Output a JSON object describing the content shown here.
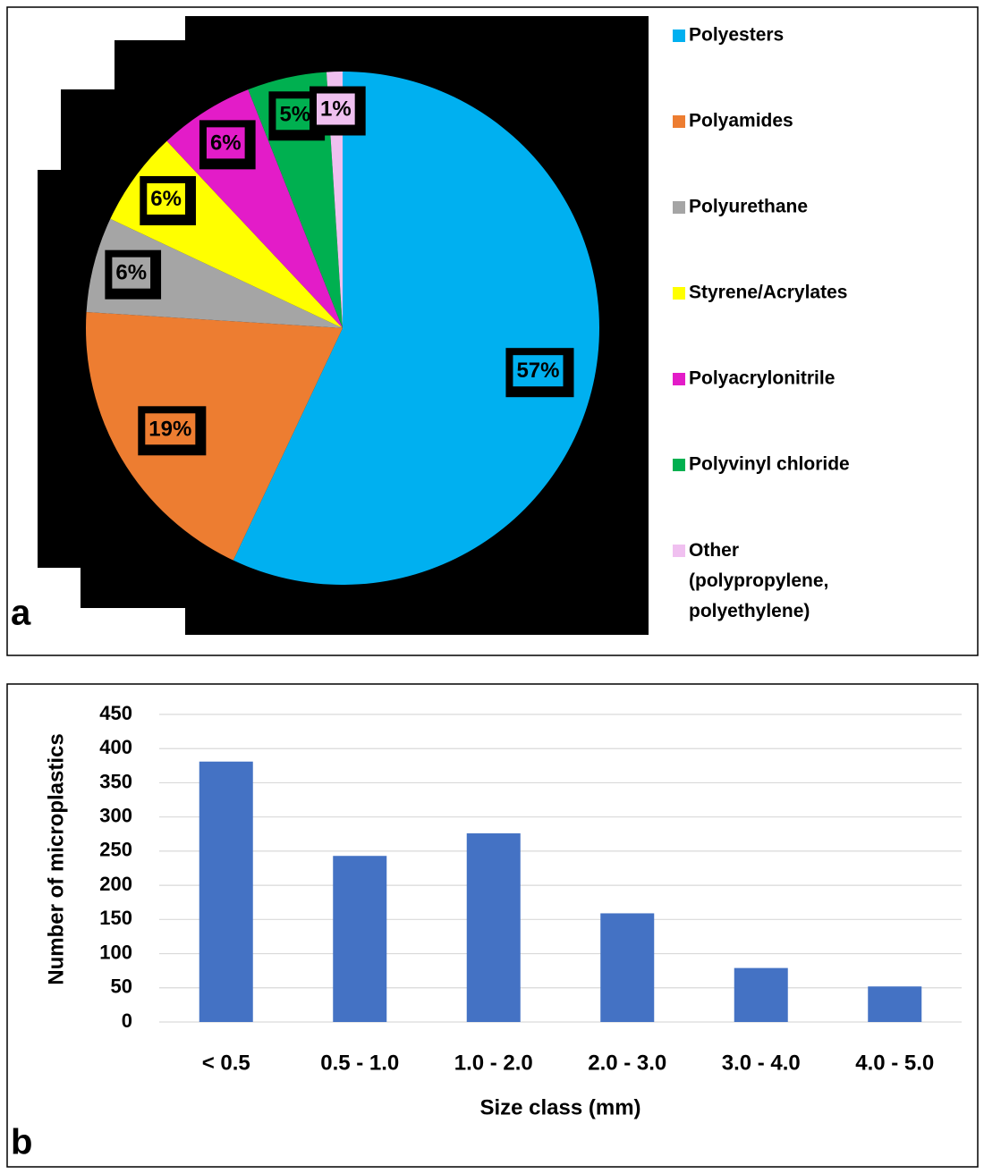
{
  "chart_data": [
    {
      "type": "pie",
      "panel_label": "a",
      "categories": [
        "Polyesters",
        "Polyamides",
        "Polyurethane",
        "Styrene/Acrylates",
        "Polyacrylonitrile",
        "Polyvinyl chloride",
        "Other (polypropylene, polyethylene)"
      ],
      "values": [
        57,
        19,
        6,
        6,
        6,
        5,
        1
      ],
      "value_labels": [
        "57%",
        "19%",
        "6%",
        "6%",
        "6%",
        "5%",
        "1%"
      ],
      "colors": [
        "#00b0f0",
        "#ed7d31",
        "#a5a5a5",
        "#ffff00",
        "#e31cc8",
        "#00b050",
        "#f0c0f0"
      ],
      "legend": "right"
    },
    {
      "type": "bar",
      "panel_label": "b",
      "categories": [
        "< 0.5",
        "0.5 - 1.0",
        "1.0 - 2.0",
        "2.0 - 3.0",
        "3.0 - 4.0",
        "4.0 - 5.0"
      ],
      "values": [
        381,
        243,
        276,
        159,
        79,
        52
      ],
      "color": "#4472c4",
      "xlabel": "Size class (mm)",
      "ylabel": "Number of microplastics",
      "ylim": [
        0,
        450
      ],
      "yticks": [
        0,
        50,
        100,
        150,
        200,
        250,
        300,
        350,
        400,
        450
      ],
      "grid": true
    }
  ]
}
